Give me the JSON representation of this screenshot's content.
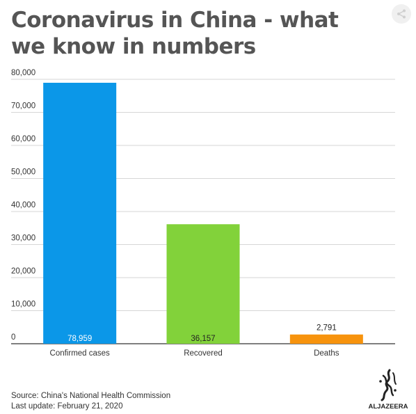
{
  "title": "Coronavirus in China - what we know in numbers",
  "share_icon": "share-icon",
  "logo": {
    "name": "ALJAZEERA",
    "icon": "aljazeera-logo-icon"
  },
  "footer": {
    "source": "Source: China's National Health Commission",
    "update": "Last update: February 21, 2020"
  },
  "chart_data": {
    "type": "bar",
    "title": "Coronavirus in China - what we know in numbers",
    "categories": [
      "Confirmed cases",
      "Recovered",
      "Deaths"
    ],
    "values": [
      78959,
      36157,
      2791
    ],
    "value_labels": [
      "78,959",
      "36,157",
      "2,791"
    ],
    "colors": [
      "#0b97e8",
      "#82d23a",
      "#f7930d"
    ],
    "value_label_colors": [
      "#ffffff",
      "#222222",
      "#222222"
    ],
    "ylim": [
      0,
      80000
    ],
    "yticks": [
      0,
      10000,
      20000,
      30000,
      40000,
      50000,
      60000,
      70000,
      80000
    ],
    "ytick_labels": [
      "0",
      "10,000",
      "20,000",
      "30,000",
      "40,000",
      "50,000",
      "60,000",
      "70,000",
      "80,000"
    ],
    "grid": true,
    "legend": "none",
    "xlabel": "",
    "ylabel": ""
  }
}
